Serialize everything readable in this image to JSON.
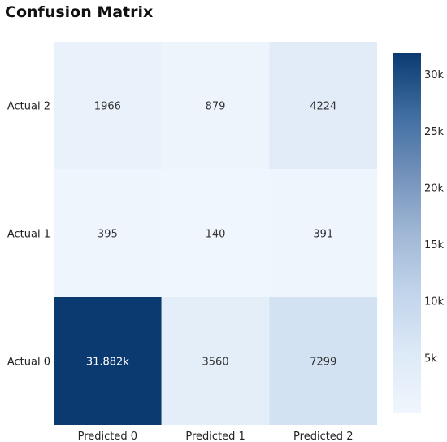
{
  "chart_data": {
    "type": "heatmap",
    "title": "Confusion Matrix",
    "x_categories": [
      "Predicted 0",
      "Predicted 1",
      "Predicted 2"
    ],
    "y_categories": [
      "Actual 2",
      "Actual 1",
      "Actual 0"
    ],
    "values": [
      [
        1966,
        879,
        4224
      ],
      [
        395,
        140,
        391
      ],
      [
        31882,
        3560,
        7299
      ]
    ],
    "cell_labels": [
      [
        "1966",
        "879",
        "4224"
      ],
      [
        "395",
        "140",
        "391"
      ],
      [
        "31.882k",
        "3560",
        "7299"
      ]
    ],
    "colorscale": [
      "#f0f6fd",
      "#dce9f7",
      "#c1d4ea",
      "#9fb7d5",
      "#7190ba",
      "#3e6ca0",
      "#0a3a70"
    ],
    "colorbar": {
      "range": [
        140,
        31882
      ],
      "ticks": [
        5000,
        10000,
        15000,
        20000,
        25000,
        30000
      ],
      "tick_labels": [
        "5k",
        "10k",
        "15k",
        "20k",
        "25k",
        "30k"
      ]
    }
  }
}
